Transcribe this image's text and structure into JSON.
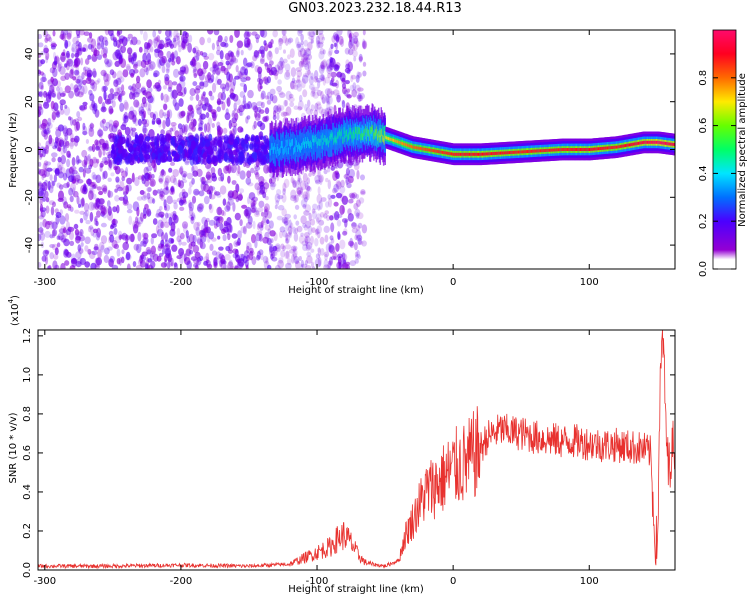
{
  "title": "GN03.2023.232.18.44.R13",
  "colors": {
    "snr_line": "#e8312e",
    "axis": "#000000",
    "background": "#ffffff"
  },
  "chart_data": [
    {
      "type": "heatmap",
      "xlabel": "Height of straight line (km)",
      "ylabel": "Frequency (Hz)",
      "xlim": [
        -305,
        163
      ],
      "ylim": [
        -50,
        50
      ],
      "x_ticks": [
        -300,
        -200,
        -100,
        0,
        100
      ],
      "y_ticks": [
        -40,
        -20,
        0,
        20,
        40
      ],
      "colorbar": {
        "label": "Normalized spectral amplitude",
        "range": [
          0,
          1
        ],
        "ticks": [
          "0.0",
          "0.2",
          "0.4",
          "0.6",
          "0.8"
        ],
        "colormap": "gist_rainbow_r"
      },
      "ridge": {
        "x": [
          -130,
          -100,
          -80,
          -60,
          -50,
          -40,
          -30,
          -20,
          -10,
          0,
          20,
          50,
          80,
          100,
          120,
          140,
          150,
          163
        ],
        "y": [
          0,
          3,
          6,
          7,
          5,
          3,
          1,
          0,
          -1,
          -2,
          -2,
          -1,
          0,
          0,
          1,
          3,
          3,
          2
        ],
        "amplitude": [
          0.4,
          0.45,
          0.5,
          0.6,
          0.72,
          0.78,
          0.82,
          0.85,
          0.88,
          0.9,
          0.92,
          0.9,
          0.9,
          0.92,
          0.9,
          0.95,
          0.98,
          0.95
        ]
      },
      "noise_region_km": [
        -305,
        -65
      ]
    },
    {
      "type": "line",
      "xlabel": "Height of straight line (km)",
      "ylabel": "SNR (10 * v/v)",
      "y_scale_label": "(x10",
      "y_scale_exp": "4",
      "y_scale_close": ")",
      "xlim": [
        -305,
        163
      ],
      "ylim": [
        0,
        1.23
      ],
      "x_ticks": [
        -300,
        -200,
        -100,
        0,
        100
      ],
      "y_ticks": [
        "0.0",
        "0.2",
        "0.4",
        "0.6",
        "0.8",
        "1.0",
        "1.2"
      ],
      "series": [
        {
          "x": [
            -305,
            -250,
            -200,
            -150,
            -120,
            -110,
            -100,
            -90,
            -85,
            -80,
            -75,
            -70,
            -65,
            -60,
            -50,
            -40,
            -35,
            -30,
            -25,
            -20,
            -10,
            0,
            10,
            20,
            25,
            30,
            35,
            40,
            50,
            60,
            70,
            80,
            90,
            100,
            110,
            120,
            130,
            140,
            145,
            148,
            150,
            152,
            154,
            156,
            158,
            160,
            163
          ],
          "y": [
            0.02,
            0.02,
            0.025,
            0.02,
            0.03,
            0.06,
            0.09,
            0.12,
            0.16,
            0.18,
            0.14,
            0.08,
            0.04,
            0.03,
            0.02,
            0.05,
            0.18,
            0.25,
            0.33,
            0.4,
            0.45,
            0.52,
            0.55,
            0.62,
            0.68,
            0.7,
            0.72,
            0.71,
            0.7,
            0.68,
            0.67,
            0.66,
            0.66,
            0.65,
            0.64,
            0.64,
            0.63,
            0.62,
            0.6,
            0.2,
            0.1,
            0.9,
            1.23,
            0.8,
            0.5,
            0.6,
            0.65
          ]
        }
      ]
    }
  ]
}
